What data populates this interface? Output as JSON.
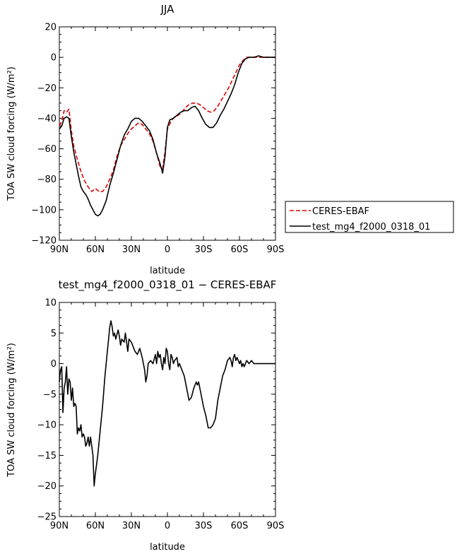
{
  "chart_data": [
    {
      "type": "line",
      "title": "JJA",
      "xlabel": "latitude",
      "ylabel": "TOA SW cloud forcing (W/m²)",
      "xlim": [
        90,
        -90
      ],
      "ylim": [
        -120,
        20
      ],
      "xticks": [
        90,
        60,
        30,
        0,
        -30,
        -60,
        -90
      ],
      "xtick_labels": [
        "90N",
        "60N",
        "30N",
        "0",
        "30S",
        "60S",
        "90S"
      ],
      "yticks": [
        20,
        0,
        -20,
        -40,
        -60,
        -80,
        -100,
        -120
      ],
      "ytick_labels": [
        "20",
        "0",
        "−20",
        "−40",
        "−60",
        "−80",
        "−100",
        "−120"
      ],
      "legend_position": "right",
      "series": [
        {
          "name": "CERES-EBAF",
          "color": "#e00000",
          "style": "dashed",
          "points": [
            [
              90,
              -45
            ],
            [
              88,
              -42
            ],
            [
              86,
              -35
            ],
            [
              84,
              -36
            ],
            [
              82,
              -34
            ],
            [
              80,
              -48
            ],
            [
              78,
              -58
            ],
            [
              75,
              -67
            ],
            [
              72,
              -75
            ],
            [
              69,
              -81
            ],
            [
              66,
              -85
            ],
            [
              63,
              -88
            ],
            [
              60,
              -86
            ],
            [
              57,
              -88
            ],
            [
              54,
              -88
            ],
            [
              51,
              -85
            ],
            [
              48,
              -80
            ],
            [
              45,
              -74
            ],
            [
              42,
              -65
            ],
            [
              39,
              -58
            ],
            [
              36,
              -54
            ],
            [
              33,
              -50
            ],
            [
              30,
              -47
            ],
            [
              27,
              -45
            ],
            [
              24,
              -43
            ],
            [
              21,
              -44
            ],
            [
              18,
              -47
            ],
            [
              15,
              -50
            ],
            [
              12,
              -55
            ],
            [
              9,
              -63
            ],
            [
              6,
              -72
            ],
            [
              4,
              -73
            ],
            [
              2,
              -62
            ],
            [
              0,
              -47
            ],
            [
              -3,
              -42
            ],
            [
              -6,
              -39
            ],
            [
              -9,
              -38
            ],
            [
              -12,
              -36
            ],
            [
              -15,
              -33
            ],
            [
              -18,
              -31
            ],
            [
              -21,
              -30
            ],
            [
              -24,
              -30
            ],
            [
              -27,
              -31
            ],
            [
              -30,
              -33
            ],
            [
              -33,
              -35
            ],
            [
              -36,
              -36
            ],
            [
              -39,
              -35
            ],
            [
              -42,
              -32
            ],
            [
              -45,
              -28
            ],
            [
              -48,
              -24
            ],
            [
              -51,
              -20
            ],
            [
              -54,
              -15
            ],
            [
              -57,
              -10
            ],
            [
              -60,
              -5
            ],
            [
              -63,
              -2
            ],
            [
              -66,
              0
            ],
            [
              -70,
              0
            ],
            [
              -75,
              0
            ],
            [
              -80,
              0
            ],
            [
              -85,
              0
            ],
            [
              -90,
              0
            ]
          ]
        },
        {
          "name": "test_mg4_f2000_0318_01",
          "color": "#000000",
          "style": "solid",
          "points": [
            [
              90,
              -47
            ],
            [
              88,
              -45
            ],
            [
              86,
              -40
            ],
            [
              84,
              -39
            ],
            [
              82,
              -40
            ],
            [
              80,
              -52
            ],
            [
              78,
              -62
            ],
            [
              76,
              -70
            ],
            [
              74,
              -78
            ],
            [
              72,
              -85
            ],
            [
              70,
              -88
            ],
            [
              68,
              -90
            ],
            [
              66,
              -93
            ],
            [
              64,
              -97
            ],
            [
              62,
              -100
            ],
            [
              60,
              -103
            ],
            [
              58,
              -104
            ],
            [
              56,
              -103
            ],
            [
              54,
              -100
            ],
            [
              51,
              -94
            ],
            [
              48,
              -84
            ],
            [
              45,
              -76
            ],
            [
              42,
              -67
            ],
            [
              39,
              -58
            ],
            [
              36,
              -51
            ],
            [
              33,
              -47
            ],
            [
              30,
              -42
            ],
            [
              27,
              -40
            ],
            [
              24,
              -40
            ],
            [
              21,
              -42
            ],
            [
              18,
              -45
            ],
            [
              15,
              -48
            ],
            [
              12,
              -54
            ],
            [
              9,
              -63
            ],
            [
              6,
              -70
            ],
            [
              4,
              -76
            ],
            [
              2,
              -65
            ],
            [
              0,
              -46
            ],
            [
              -2,
              -41
            ],
            [
              -5,
              -40
            ],
            [
              -8,
              -38
            ],
            [
              -11,
              -36
            ],
            [
              -14,
              -35
            ],
            [
              -17,
              -35
            ],
            [
              -20,
              -33
            ],
            [
              -23,
              -32
            ],
            [
              -26,
              -35
            ],
            [
              -29,
              -40
            ],
            [
              -32,
              -44
            ],
            [
              -35,
              -46
            ],
            [
              -38,
              -46
            ],
            [
              -41,
              -43
            ],
            [
              -44,
              -38
            ],
            [
              -47,
              -34
            ],
            [
              -50,
              -29
            ],
            [
              -53,
              -24
            ],
            [
              -56,
              -18
            ],
            [
              -59,
              -10
            ],
            [
              -62,
              -4
            ],
            [
              -65,
              -1
            ],
            [
              -68,
              0
            ],
            [
              -72,
              0
            ],
            [
              -76,
              1
            ],
            [
              -80,
              0
            ],
            [
              -85,
              0
            ],
            [
              -90,
              0
            ]
          ]
        }
      ]
    },
    {
      "type": "line",
      "title": "test_mg4_f2000_0318_01 − CERES-EBAF",
      "xlabel": "latitude",
      "ylabel": "TOA SW cloud forcing (W/m²)",
      "xlim": [
        90,
        -90
      ],
      "ylim": [
        -25,
        10
      ],
      "xticks": [
        90,
        60,
        30,
        0,
        -30,
        -60,
        -90
      ],
      "xtick_labels": [
        "90N",
        "60N",
        "30N",
        "0",
        "30S",
        "60S",
        "90S"
      ],
      "yticks": [
        10,
        5,
        0,
        -5,
        -10,
        -15,
        -20,
        -25
      ],
      "ytick_labels": [
        "10",
        "5",
        "0",
        "−5",
        "−10",
        "−15",
        "−20",
        "−25"
      ],
      "series": [
        {
          "color": "#000000",
          "style": "solid",
          "points": [
            [
              90,
              -3
            ],
            [
              89,
              -1
            ],
            [
              88,
              -0.5
            ],
            [
              87,
              -8
            ],
            [
              86,
              -4
            ],
            [
              85,
              -3
            ],
            [
              84,
              -0.5
            ],
            [
              83,
              -5
            ],
            [
              82,
              -2.5
            ],
            [
              81,
              -3
            ],
            [
              80,
              -6
            ],
            [
              79,
              -4
            ],
            [
              78,
              -7
            ],
            [
              77,
              -6.5
            ],
            [
              76,
              -7
            ],
            [
              75,
              -11.5
            ],
            [
              74,
              -10.5
            ],
            [
              73,
              -11
            ],
            [
              72,
              -10
            ],
            [
              71,
              -12
            ],
            [
              70,
              -11.5
            ],
            [
              69,
              -12
            ],
            [
              68,
              -13.5
            ],
            [
              67,
              -13
            ],
            [
              66,
              -12
            ],
            [
              65,
              -13.5
            ],
            [
              64,
              -12
            ],
            [
              62,
              -15
            ],
            [
              61,
              -20
            ],
            [
              60,
              -18
            ],
            [
              58,
              -15
            ],
            [
              56,
              -11
            ],
            [
              54,
              -7
            ],
            [
              52,
              -2
            ],
            [
              50,
              2
            ],
            [
              48,
              6
            ],
            [
              47,
              7
            ],
            [
              46,
              6
            ],
            [
              45,
              4.5
            ],
            [
              44,
              5
            ],
            [
              43,
              4
            ],
            [
              41,
              5.5
            ],
            [
              40,
              4.5
            ],
            [
              39,
              3
            ],
            [
              38,
              4
            ],
            [
              36,
              3.5
            ],
            [
              35,
              5
            ],
            [
              33,
              2
            ],
            [
              32,
              4
            ],
            [
              30,
              3.5
            ],
            [
              29,
              3
            ],
            [
              27,
              2
            ],
            [
              25,
              1.5
            ],
            [
              23,
              2.5
            ],
            [
              21,
              1
            ],
            [
              20,
              0
            ],
            [
              19,
              -1
            ],
            [
              18,
              -3
            ],
            [
              17,
              -2
            ],
            [
              16,
              0
            ],
            [
              14,
              0.5
            ],
            [
              12,
              0
            ],
            [
              10,
              1.5
            ],
            [
              9,
              0
            ],
            [
              8,
              2
            ],
            [
              7,
              1
            ],
            [
              6,
              1.5
            ],
            [
              5,
              0
            ],
            [
              4,
              -1
            ],
            [
              3,
              1
            ],
            [
              2,
              0
            ],
            [
              1,
              2.5
            ],
            [
              0,
              2
            ],
            [
              -1,
              0
            ],
            [
              -2,
              -1
            ],
            [
              -3,
              1.5
            ],
            [
              -4,
              1
            ],
            [
              -5,
              0
            ],
            [
              -6,
              0.5
            ],
            [
              -8,
              1
            ],
            [
              -9,
              -0.5
            ],
            [
              -10,
              0
            ],
            [
              -12,
              -1
            ],
            [
              -14,
              -2
            ],
            [
              -16,
              -4
            ],
            [
              -18,
              -6
            ],
            [
              -20,
              -5.5
            ],
            [
              -22,
              -4
            ],
            [
              -24,
              -3
            ],
            [
              -25,
              -3.5
            ],
            [
              -26,
              -3
            ],
            [
              -28,
              -5
            ],
            [
              -30,
              -7
            ],
            [
              -32,
              -8.5
            ],
            [
              -34,
              -10.5
            ],
            [
              -36,
              -10.5
            ],
            [
              -38,
              -10
            ],
            [
              -40,
              -9
            ],
            [
              -42,
              -6
            ],
            [
              -44,
              -4
            ],
            [
              -46,
              -2
            ],
            [
              -48,
              -1
            ],
            [
              -50,
              0.5
            ],
            [
              -52,
              1
            ],
            [
              -53,
              0.5
            ],
            [
              -54,
              -0.5
            ],
            [
              -55,
              1
            ],
            [
              -56,
              1.5
            ],
            [
              -57,
              0.5
            ],
            [
              -58,
              1
            ],
            [
              -59,
              0.5
            ],
            [
              -60,
              0
            ],
            [
              -61,
              0.5
            ],
            [
              -62,
              -0.5
            ],
            [
              -63,
              0
            ],
            [
              -64,
              -0.5
            ],
            [
              -65,
              0
            ],
            [
              -66,
              0.5
            ],
            [
              -68,
              0
            ],
            [
              -70,
              0.5
            ],
            [
              -72,
              0
            ],
            [
              -74,
              0
            ],
            [
              -76,
              0
            ],
            [
              -80,
              0
            ],
            [
              -85,
              0
            ],
            [
              -90,
              0
            ]
          ]
        }
      ]
    }
  ]
}
